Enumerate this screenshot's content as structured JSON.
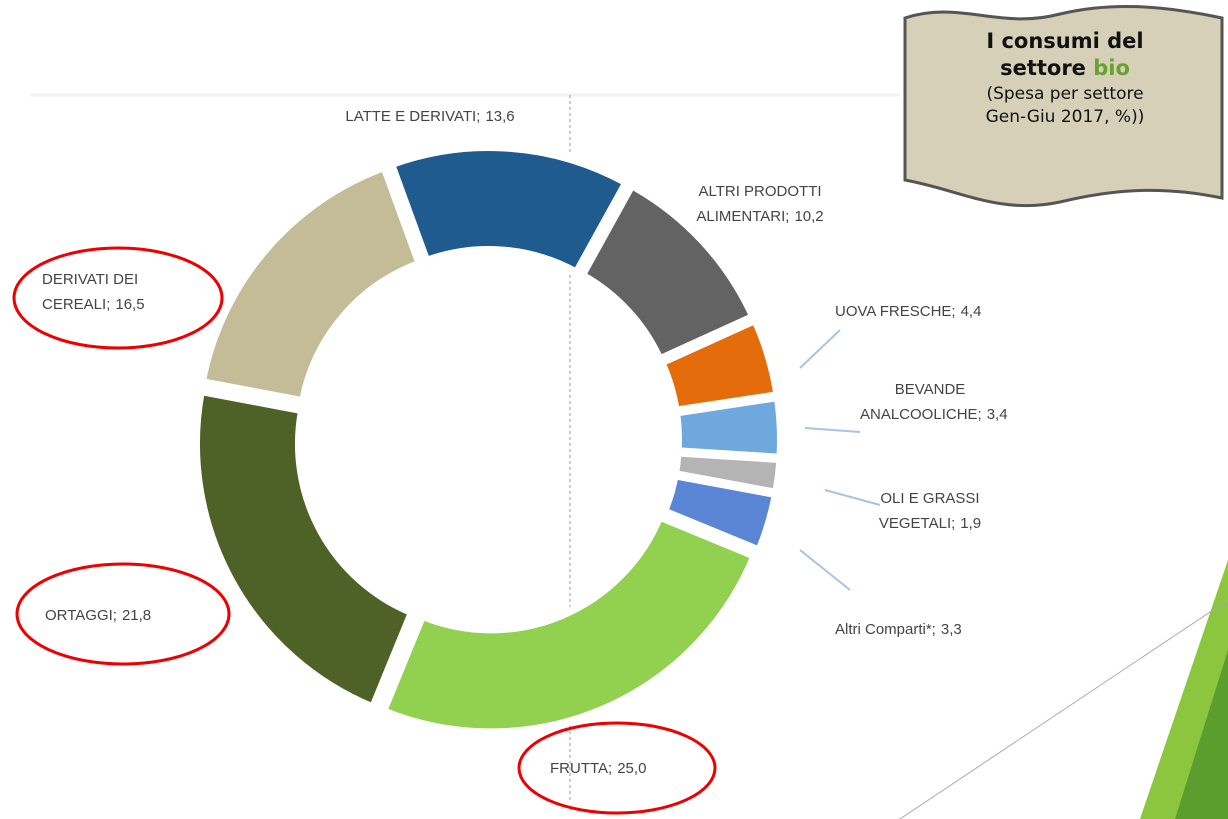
{
  "chart_data": {
    "type": "donut",
    "title": "I consumi del",
    "title_line2": "settore",
    "title_highlight": "bio",
    "subtitle": "(Spesa per settore Gen-Giu 2017, %))",
    "categories": [
      "LATTE E DERIVATI;",
      "ALTRI PRODOTTI ALIMENTARI;",
      "UOVA FRESCHE;",
      "BEVANDE ANALCOOLICHE;",
      "OLI E GRASSI VEGETALI;",
      "Altri Comparti*;",
      "FRUTTA;",
      "ORTAGGI;",
      "DERIVATI DEI CEREALI;"
    ],
    "values": [
      13.6,
      10.2,
      4.4,
      3.4,
      1.9,
      3.3,
      25.0,
      21.8,
      16.5
    ],
    "value_labels": [
      "13,6",
      "10,2",
      "4,4",
      "3,4",
      "1,9",
      "3,3",
      "25,0",
      "21,8",
      "16,5"
    ],
    "colors": [
      "#1f5b8e",
      "#636363",
      "#e46c0a",
      "#6fa8dc",
      "#b4b4b4",
      "#5b86d6",
      "#92d050",
      "#4e6228",
      "#c4bc96"
    ]
  }
}
